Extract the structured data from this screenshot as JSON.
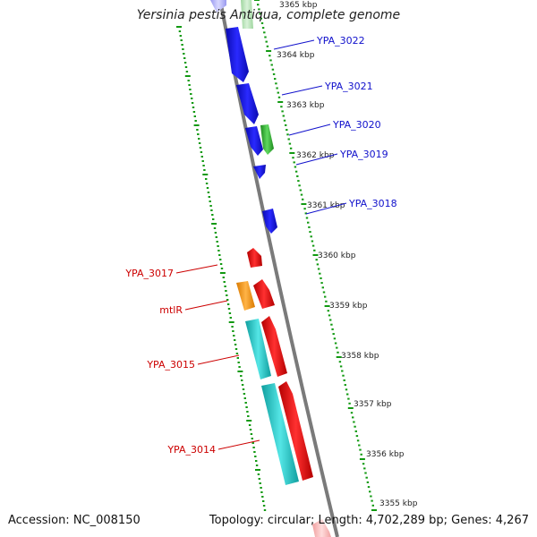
{
  "header": {
    "title": "Yersinia pestis Antiqua, complete genome"
  },
  "footer": {
    "accession": "Accession: NC_008150",
    "summary": "Topology: circular; Length: 4,702,289 bp; Genes: 4,267"
  },
  "colors": {
    "backbone": "#7a7a7a",
    "tick": "#119911",
    "blue": "#1a1aee",
    "green": "#33bb33",
    "red": "#ee1111",
    "orange": "#ff9900",
    "cyan": "#19cccc",
    "label_blue": "#1111cc",
    "label_red": "#cc0000"
  },
  "ticks": [
    {
      "label": "3365 kbp"
    },
    {
      "label": "3364 kbp"
    },
    {
      "label": "3363 kbp"
    },
    {
      "label": "3362 kbp"
    },
    {
      "label": "3361 kbp"
    },
    {
      "label": "3360 kbp"
    },
    {
      "label": "3359 kbp"
    },
    {
      "label": "3358 kbp"
    },
    {
      "label": "3357 kbp"
    },
    {
      "label": "3356 kbp"
    },
    {
      "label": "3355 kbp"
    }
  ],
  "gene_labels": [
    {
      "name": "YPA_3022",
      "color": "blue"
    },
    {
      "name": "YPA_3021",
      "color": "blue"
    },
    {
      "name": "YPA_3020",
      "color": "blue"
    },
    {
      "name": "YPA_3019",
      "color": "blue"
    },
    {
      "name": "YPA_3018",
      "color": "blue"
    },
    {
      "name": "YPA_3017",
      "color": "red"
    },
    {
      "name": "mtlR",
      "color": "red"
    },
    {
      "name": "YPA_3015",
      "color": "red"
    },
    {
      "name": "YPA_3014",
      "color": "red"
    }
  ]
}
